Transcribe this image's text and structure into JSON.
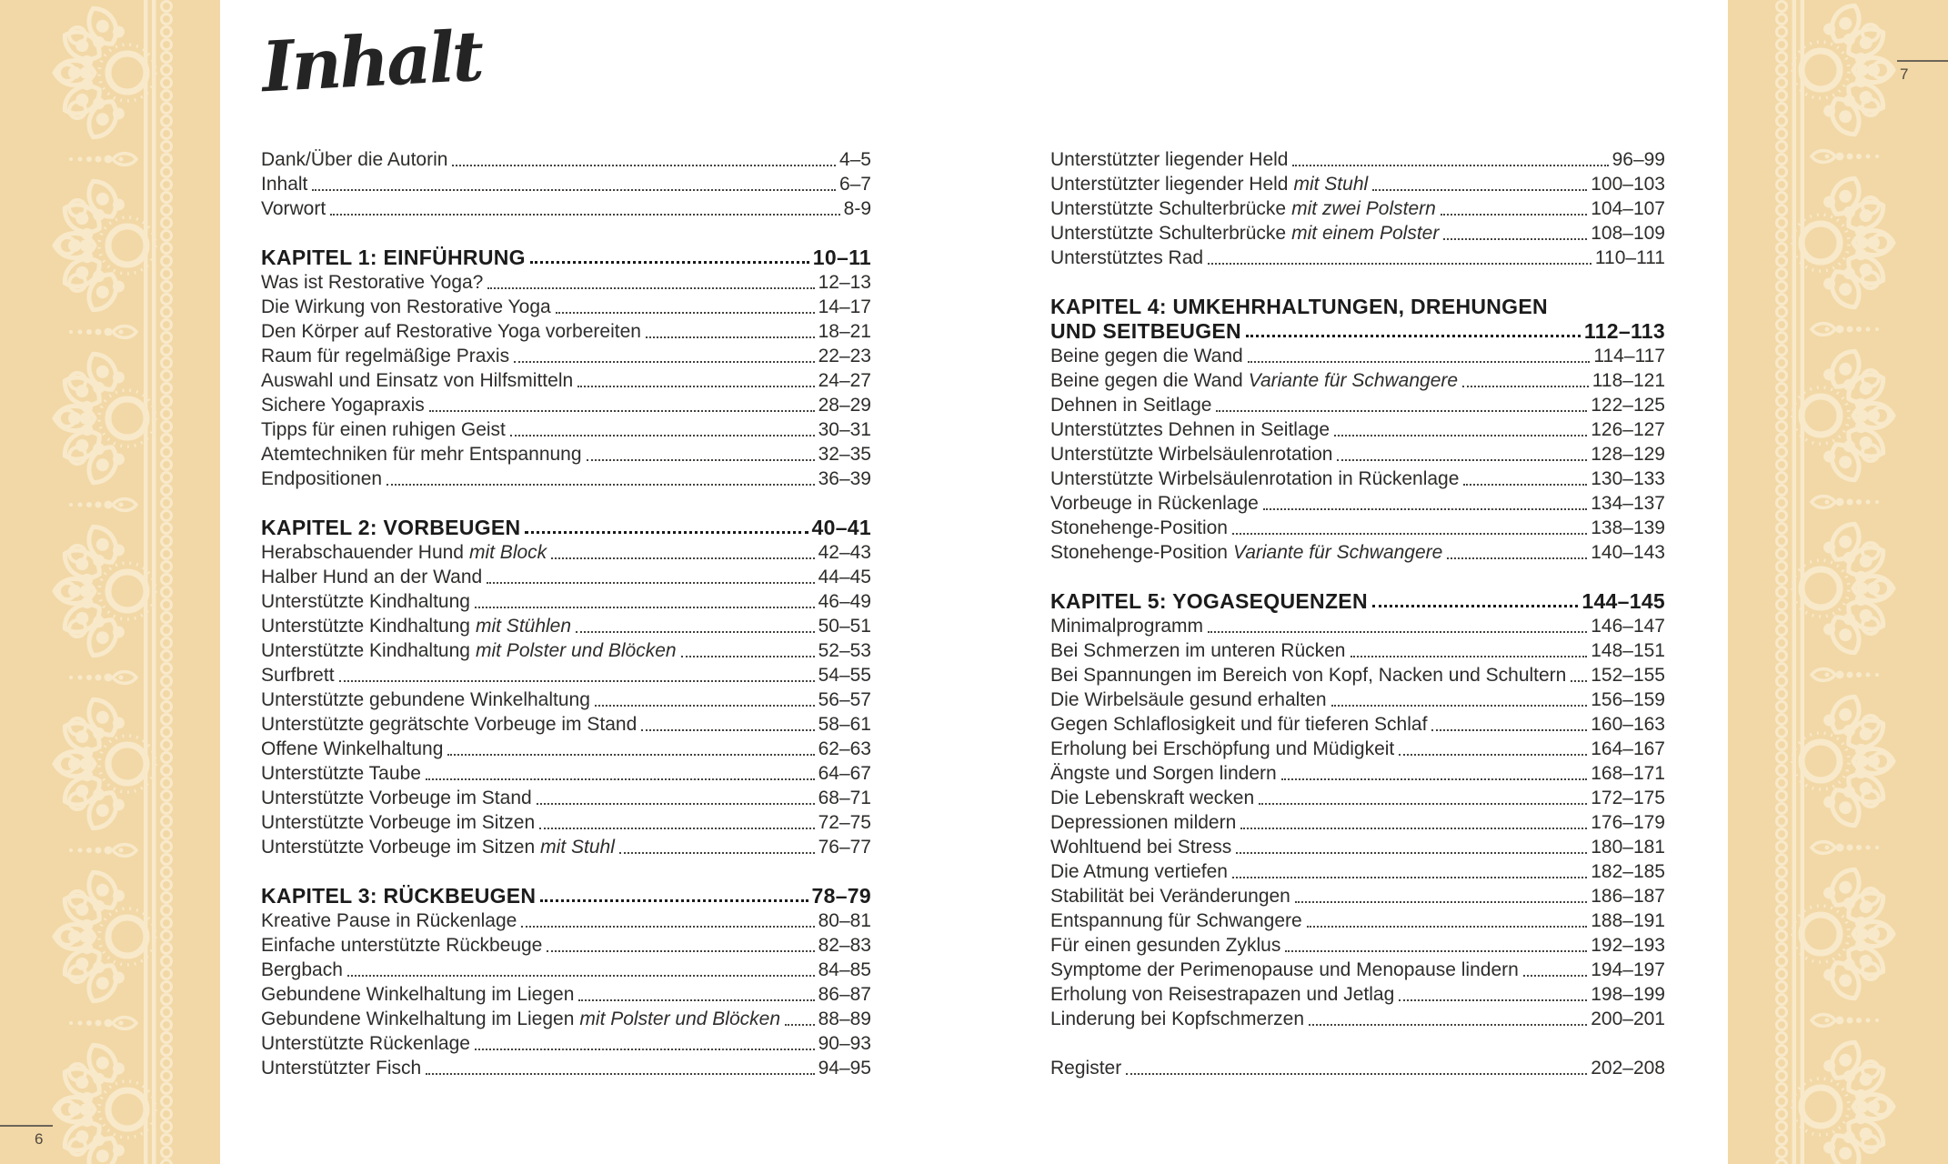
{
  "title": "Inhalt",
  "ornament": {
    "band_color": "#f2d8a6",
    "motif_color": "#f8e9ca"
  },
  "left_page": {
    "page_number": "6",
    "sections": [
      {
        "type": "entries",
        "rows": [
          {
            "label": "Dank/Über die Autorin",
            "pages": "4–5"
          },
          {
            "label": "Inhalt",
            "pages": "6–7"
          },
          {
            "label": "Vorwort",
            "pages": "8-9"
          }
        ]
      },
      {
        "type": "chapter",
        "title": "KAPITEL 1: EINFÜHRUNG",
        "pages": "10–11",
        "rows": [
          {
            "label": "Was ist Restorative Yoga?",
            "pages": "12–13"
          },
          {
            "label": "Die Wirkung von Restorative Yoga",
            "pages": "14–17"
          },
          {
            "label": "Den Körper auf Restorative Yoga vorbereiten",
            "pages": "18–21"
          },
          {
            "label": "Raum für regelmäßige Praxis",
            "pages": "22–23"
          },
          {
            "label": "Auswahl und Einsatz von Hilfsmitteln",
            "pages": "24–27"
          },
          {
            "label": "Sichere Yogapraxis",
            "pages": "28–29"
          },
          {
            "label": "Tipps für einen ruhigen Geist",
            "pages": "30–31"
          },
          {
            "label": "Atemtechniken für mehr Entspannung",
            "pages": "32–35"
          },
          {
            "label": "Endpositionen",
            "pages": "36–39"
          }
        ]
      },
      {
        "type": "chapter",
        "title": "KAPITEL 2: VORBEUGEN",
        "pages": "40–41",
        "rows": [
          {
            "label": "Herabschauender Hund",
            "italic": "mit Block",
            "pages": "42–43"
          },
          {
            "label": "Halber Hund an der Wand",
            "pages": "44–45"
          },
          {
            "label": "Unterstützte Kindhaltung",
            "pages": "46–49"
          },
          {
            "label": "Unterstützte Kindhaltung",
            "italic": "mit Stühlen",
            "pages": "50–51"
          },
          {
            "label": "Unterstützte Kindhaltung",
            "italic": "mit Polster und Blöcken",
            "pages": "52–53"
          },
          {
            "label": "Surfbrett",
            "pages": "54–55"
          },
          {
            "label": "Unterstützte gebundene Winkelhaltung",
            "pages": "56–57"
          },
          {
            "label": "Unterstützte gegrätschte Vorbeuge im Stand",
            "pages": "58–61"
          },
          {
            "label": "Offene Winkelhaltung",
            "pages": "62–63"
          },
          {
            "label": "Unterstützte Taube",
            "pages": "64–67"
          },
          {
            "label": "Unterstützte Vorbeuge im Stand",
            "pages": "68–71"
          },
          {
            "label": "Unterstützte Vorbeuge im Sitzen",
            "pages": "72–75"
          },
          {
            "label": "Unterstützte Vorbeuge im Sitzen",
            "italic": "mit Stuhl",
            "pages": "76–77"
          }
        ]
      },
      {
        "type": "chapter",
        "title": "KAPITEL 3: RÜCKBEUGEN",
        "pages": "78–79",
        "rows": [
          {
            "label": "Kreative Pause in Rückenlage",
            "pages": "80–81"
          },
          {
            "label": "Einfache unterstützte Rückbeuge",
            "pages": "82–83"
          },
          {
            "label": "Bergbach",
            "pages": "84–85"
          },
          {
            "label": "Gebundene Winkelhaltung im Liegen",
            "pages": "86–87"
          },
          {
            "label": "Gebundene Winkelhaltung im Liegen",
            "italic": "mit Polster und Blöcken",
            "pages": "88–89"
          },
          {
            "label": "Unterstützte Rückenlage",
            "pages": "90–93"
          },
          {
            "label": "Unterstützter Fisch",
            "pages": "94–95"
          }
        ]
      }
    ]
  },
  "right_page": {
    "page_number": "7",
    "sections": [
      {
        "type": "entries",
        "rows": [
          {
            "label": "Unterstützter liegender Held",
            "pages": "96–99"
          },
          {
            "label": "Unterstützter liegender Held",
            "italic": "mit Stuhl",
            "pages": "100–103"
          },
          {
            "label": "Unterstützte Schulterbrücke",
            "italic": "mit zwei Polstern",
            "pages": "104–107"
          },
          {
            "label": "Unterstützte Schulterbrücke",
            "italic": "mit einem Polster",
            "pages": "108–109"
          },
          {
            "label": "Unterstütztes Rad",
            "pages": "110–111"
          }
        ]
      },
      {
        "type": "chapter",
        "title": "KAPITEL 4: UMKEHRHALTUNGEN, DREHUNGEN",
        "title2": "UND SEITBEUGEN",
        "pages": "112–113",
        "rows": [
          {
            "label": "Beine gegen die Wand",
            "pages": "114–117"
          },
          {
            "label": "Beine gegen die Wand",
            "italic": "Variante für Schwangere",
            "pages": "118–121"
          },
          {
            "label": "Dehnen in Seitlage",
            "pages": "122–125"
          },
          {
            "label": "Unterstütztes Dehnen in Seitlage",
            "pages": "126–127"
          },
          {
            "label": "Unterstützte Wirbelsäulenrotation",
            "pages": "128–129"
          },
          {
            "label": "Unterstützte Wirbelsäulenrotation in Rückenlage",
            "pages": "130–133"
          },
          {
            "label": "Vorbeuge in Rückenlage",
            "pages": "134–137"
          },
          {
            "label": "Stonehenge-Position",
            "pages": "138–139"
          },
          {
            "label": "Stonehenge-Position",
            "italic": "Variante für Schwangere",
            "pages": "140–143"
          }
        ]
      },
      {
        "type": "chapter",
        "title": "KAPITEL 5: YOGASEQUENZEN",
        "pages": "144–145",
        "rows": [
          {
            "label": "Minimalprogramm",
            "pages": "146–147"
          },
          {
            "label": "Bei Schmerzen im unteren Rücken",
            "pages": "148–151"
          },
          {
            "label": "Bei Spannungen im Bereich von Kopf, Nacken und Schultern",
            "pages": "152–155"
          },
          {
            "label": "Die Wirbelsäule gesund erhalten",
            "pages": "156–159"
          },
          {
            "label": "Gegen Schlaflosigkeit und für tieferen Schlaf",
            "pages": "160–163"
          },
          {
            "label": "Erholung bei Erschöpfung und Müdigkeit",
            "pages": "164–167"
          },
          {
            "label": "Ängste und Sorgen lindern",
            "pages": "168–171"
          },
          {
            "label": "Die Lebenskraft wecken",
            "pages": "172–175"
          },
          {
            "label": "Depressionen mildern",
            "pages": "176–179"
          },
          {
            "label": "Wohltuend bei Stress",
            "pages": "180–181"
          },
          {
            "label": "Die Atmung vertiefen",
            "pages": "182–185"
          },
          {
            "label": "Stabilität bei Veränderungen",
            "pages": "186–187"
          },
          {
            "label": "Entspannung für Schwangere",
            "pages": "188–191"
          },
          {
            "label": "Für einen gesunden Zyklus",
            "pages": "192–193"
          },
          {
            "label": "Symptome der Perimenopause und Menopause lindern",
            "pages": "194–197"
          },
          {
            "label": "Erholung von Reisestrapazen und Jetlag",
            "pages": "198–199"
          },
          {
            "label": "Linderung bei Kopfschmerzen",
            "pages": "200–201"
          }
        ]
      },
      {
        "type": "entries",
        "rows": [
          {
            "label": "Register",
            "pages": "202–208"
          }
        ]
      }
    ]
  }
}
